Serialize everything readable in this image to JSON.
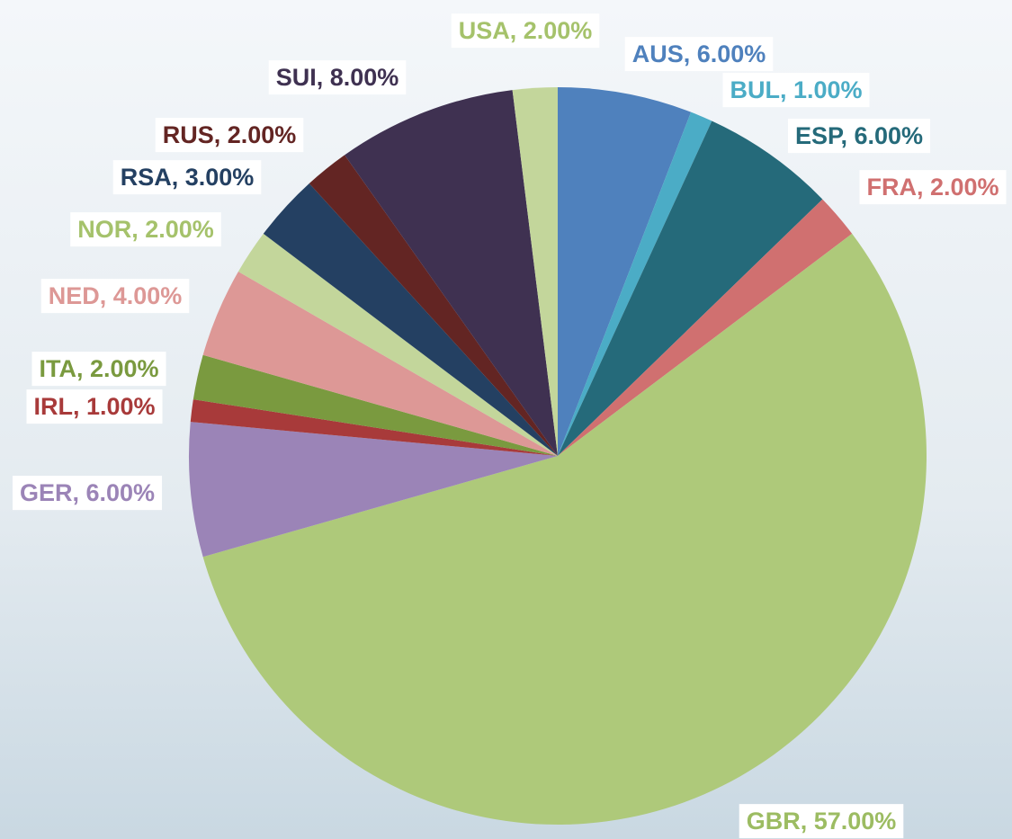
{
  "chart_data": {
    "type": "pie",
    "values": [
      6,
      1,
      6,
      2,
      57,
      6,
      1,
      2,
      4,
      2,
      3,
      2,
      8,
      2
    ],
    "value_labels": [
      "AUS, 6.00%",
      "BUL, 1.00%",
      "ESP, 6.00%",
      "FRA, 2.00%",
      "GBR, 57.00%",
      "GER, 6.00%",
      "IRL, 1.00%",
      "ITA, 2.00%",
      "NED, 4.00%",
      "NOR, 2.00%",
      "RSA, 3.00%",
      "RUS, 2.00%",
      "SUI, 8.00%",
      "USA, 2.00%"
    ],
    "colors": [
      "#4f81bd",
      "#4bacc6",
      "#256a7a",
      "#d07070",
      "#aec97a",
      "#9b84b7",
      "#a83a3a",
      "#7a9a3f",
      "#dd9896",
      "#c3d69b",
      "#244062",
      "#632523",
      "#3f3151",
      "#c3d69b"
    ]
  }
}
